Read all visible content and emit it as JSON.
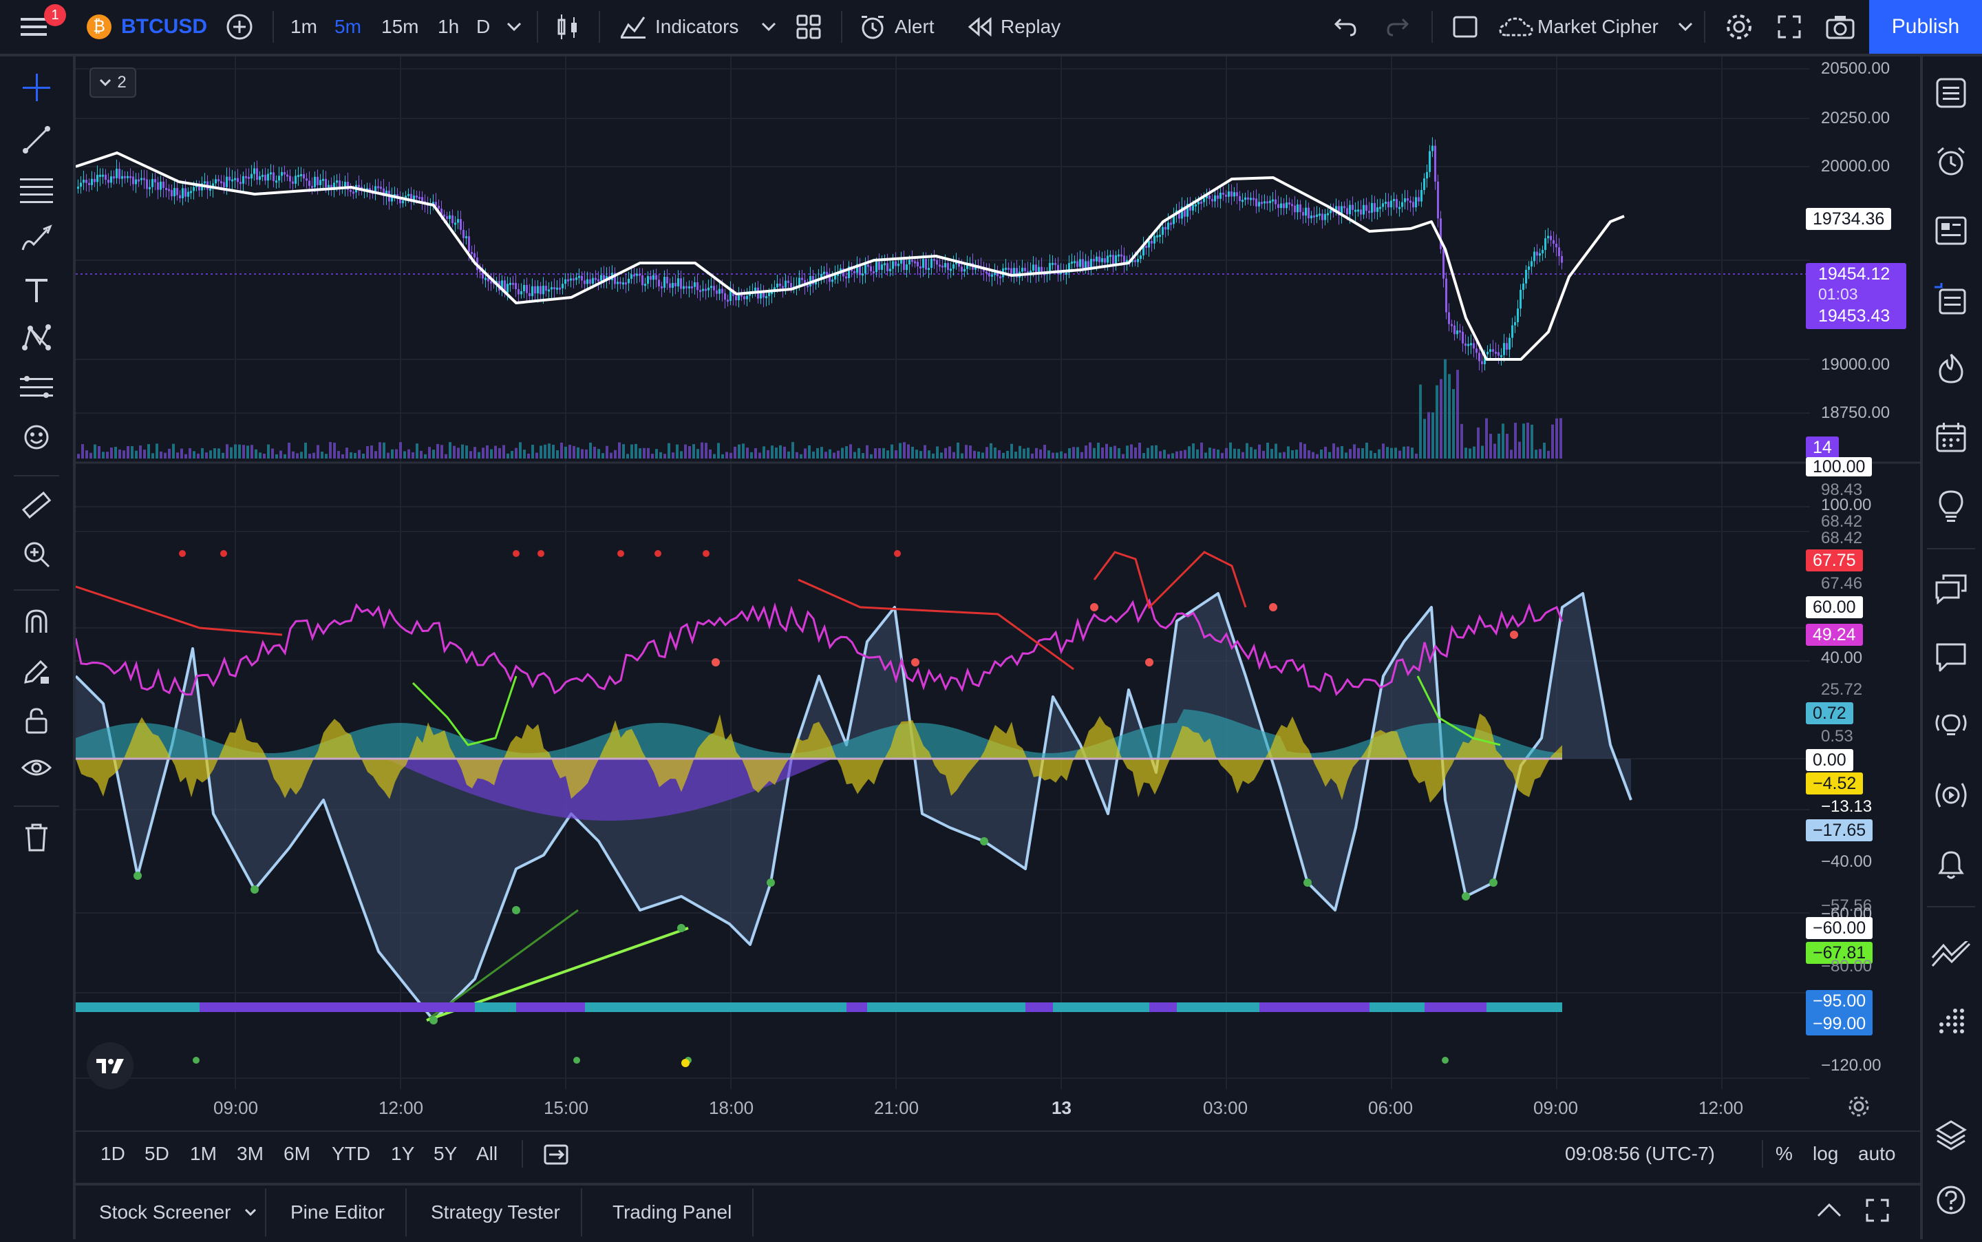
{
  "topbar": {
    "notification_count": "1",
    "symbol": "BTCUSD",
    "timeframes": [
      "1m",
      "5m",
      "15m",
      "1h",
      "D"
    ],
    "active_timeframe": "5m",
    "indicators_label": "Indicators",
    "alert_label": "Alert",
    "replay_label": "Replay",
    "layout_name": "Market Cipher",
    "publish_label": "Publish"
  },
  "colors": {
    "accent": "#2962ff",
    "up": "#26c6da",
    "down": "#7e57c2",
    "ma": "#ffffff"
  },
  "chart": {
    "pane_toggle": "2",
    "price_axis": [
      "20500.00",
      "20250.00",
      "20000.00",
      "18750.00",
      "19000.00"
    ],
    "price_axis_main": [
      {
        "v": "20500.00"
      },
      {
        "v": "20250.00"
      },
      {
        "v": "20000.00"
      },
      {
        "v": "19000.00"
      },
      {
        "v": "18750.00"
      }
    ],
    "ma_tag": "19734.36",
    "last_price": "19454.12",
    "countdown": "01:03",
    "last_price2": "19453.43",
    "volume_tag": "14",
    "osc_tags": {
      "t100": "100.00",
      "t9843": "98.43",
      "t100b": "100.00",
      "t6842": "68.42",
      "t6775": "67.75",
      "t6746": "67.46",
      "t60": "60.00",
      "t4924": "49.24",
      "t40": "40.00",
      "t2572": "25.72",
      "t072": "0.72",
      "t053": "0.53",
      "t000": "0.00",
      "tm452": "−4.52",
      "tm1313": "−13.13",
      "tm1765": "−17.65",
      "tm40": "−40.00",
      "tm5756": "−57.56",
      "tm60": "−60.00",
      "tm6000": "−60.00",
      "tm6781": "−67.81",
      "tm80": "−80.00",
      "tm95": "−95.00",
      "tm99": "−99.00",
      "tm120": "−120.00"
    },
    "time_axis": [
      "09:00",
      "12:00",
      "15:00",
      "18:00",
      "21:00",
      "13",
      "03:00",
      "06:00",
      "09:00",
      "12:00"
    ]
  },
  "rangebar": {
    "ranges": [
      "1D",
      "5D",
      "1M",
      "3M",
      "6M",
      "YTD",
      "1Y",
      "5Y",
      "All"
    ],
    "clock": "09:08:56 (UTC-7)",
    "percent": "%",
    "log": "log",
    "auto": "auto"
  },
  "bottombar": {
    "tabs": [
      "Stock Screener",
      "Pine Editor",
      "Strategy Tester",
      "Trading Panel"
    ]
  }
}
